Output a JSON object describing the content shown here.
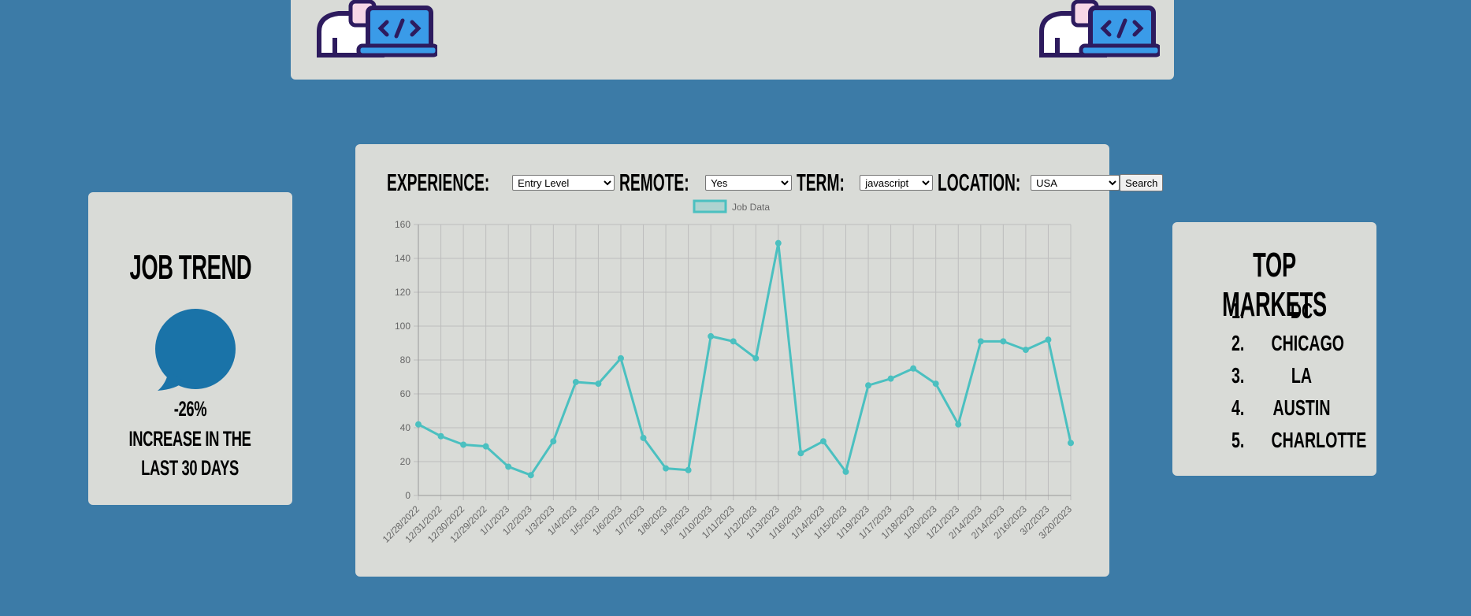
{
  "filters": {
    "experience_label": "EXPERIENCE:",
    "experience_value": "Entry Level",
    "remote_label": "REMOTE:",
    "remote_value": "Yes",
    "term_label": "TERM:",
    "term_value": "javascript",
    "location_label": "LOCATION:",
    "location_value": "USA",
    "search_label": "Search"
  },
  "trend": {
    "title": "JOB TREND",
    "percent": "-26%",
    "note_line1": "INCREASE IN THE",
    "note_line2": "LAST 30 DAYS",
    "bubble_color": "#1a73a8"
  },
  "markets": {
    "title": "TOP MARKETS",
    "items": [
      {
        "num": "1.",
        "name": "DC"
      },
      {
        "num": "2.",
        "name": "CHICAGO"
      },
      {
        "num": "3.",
        "name": "LA"
      },
      {
        "num": "4.",
        "name": "AUSTIN"
      },
      {
        "num": "5.",
        "name": "CHARLOTTE"
      }
    ]
  },
  "icons": {
    "header_left": "developer-laptop-icon",
    "header_right": "developer-laptop-icon",
    "trend": "speech-bubble-icon"
  },
  "chart_data": {
    "type": "line",
    "title": "",
    "xlabel": "",
    "ylabel": "",
    "ylim": [
      0,
      160
    ],
    "yticks": [
      0,
      20,
      40,
      60,
      80,
      100,
      120,
      140,
      160
    ],
    "grid": true,
    "legend_placement": "top-center",
    "line_color": "#4bc0c0",
    "categories": [
      "12/28/2022",
      "12/31/2022",
      "12/30/2022",
      "12/29/2022",
      "1/1/2023",
      "1/2/2023",
      "1/3/2023",
      "1/4/2023",
      "1/5/2023",
      "1/6/2023",
      "1/7/2023",
      "1/8/2023",
      "1/9/2023",
      "1/10/2023",
      "1/11/2023",
      "1/12/2023",
      "1/13/2023",
      "1/16/2023",
      "1/14/2023",
      "1/15/2023",
      "1/19/2023",
      "1/17/2023",
      "1/18/2023",
      "1/20/2023",
      "1/21/2023",
      "2/14/2023",
      "2/14/2023",
      "2/16/2023",
      "3/2/2023",
      "3/20/2023"
    ],
    "series": [
      {
        "name": "Job Data",
        "values": [
          42,
          35,
          30,
          29,
          17,
          12,
          32,
          67,
          66,
          81,
          34,
          16,
          15,
          94,
          91,
          81,
          149,
          25,
          32,
          14,
          65,
          69,
          75,
          66,
          42,
          91,
          91,
          86,
          92,
          31
        ]
      }
    ]
  }
}
